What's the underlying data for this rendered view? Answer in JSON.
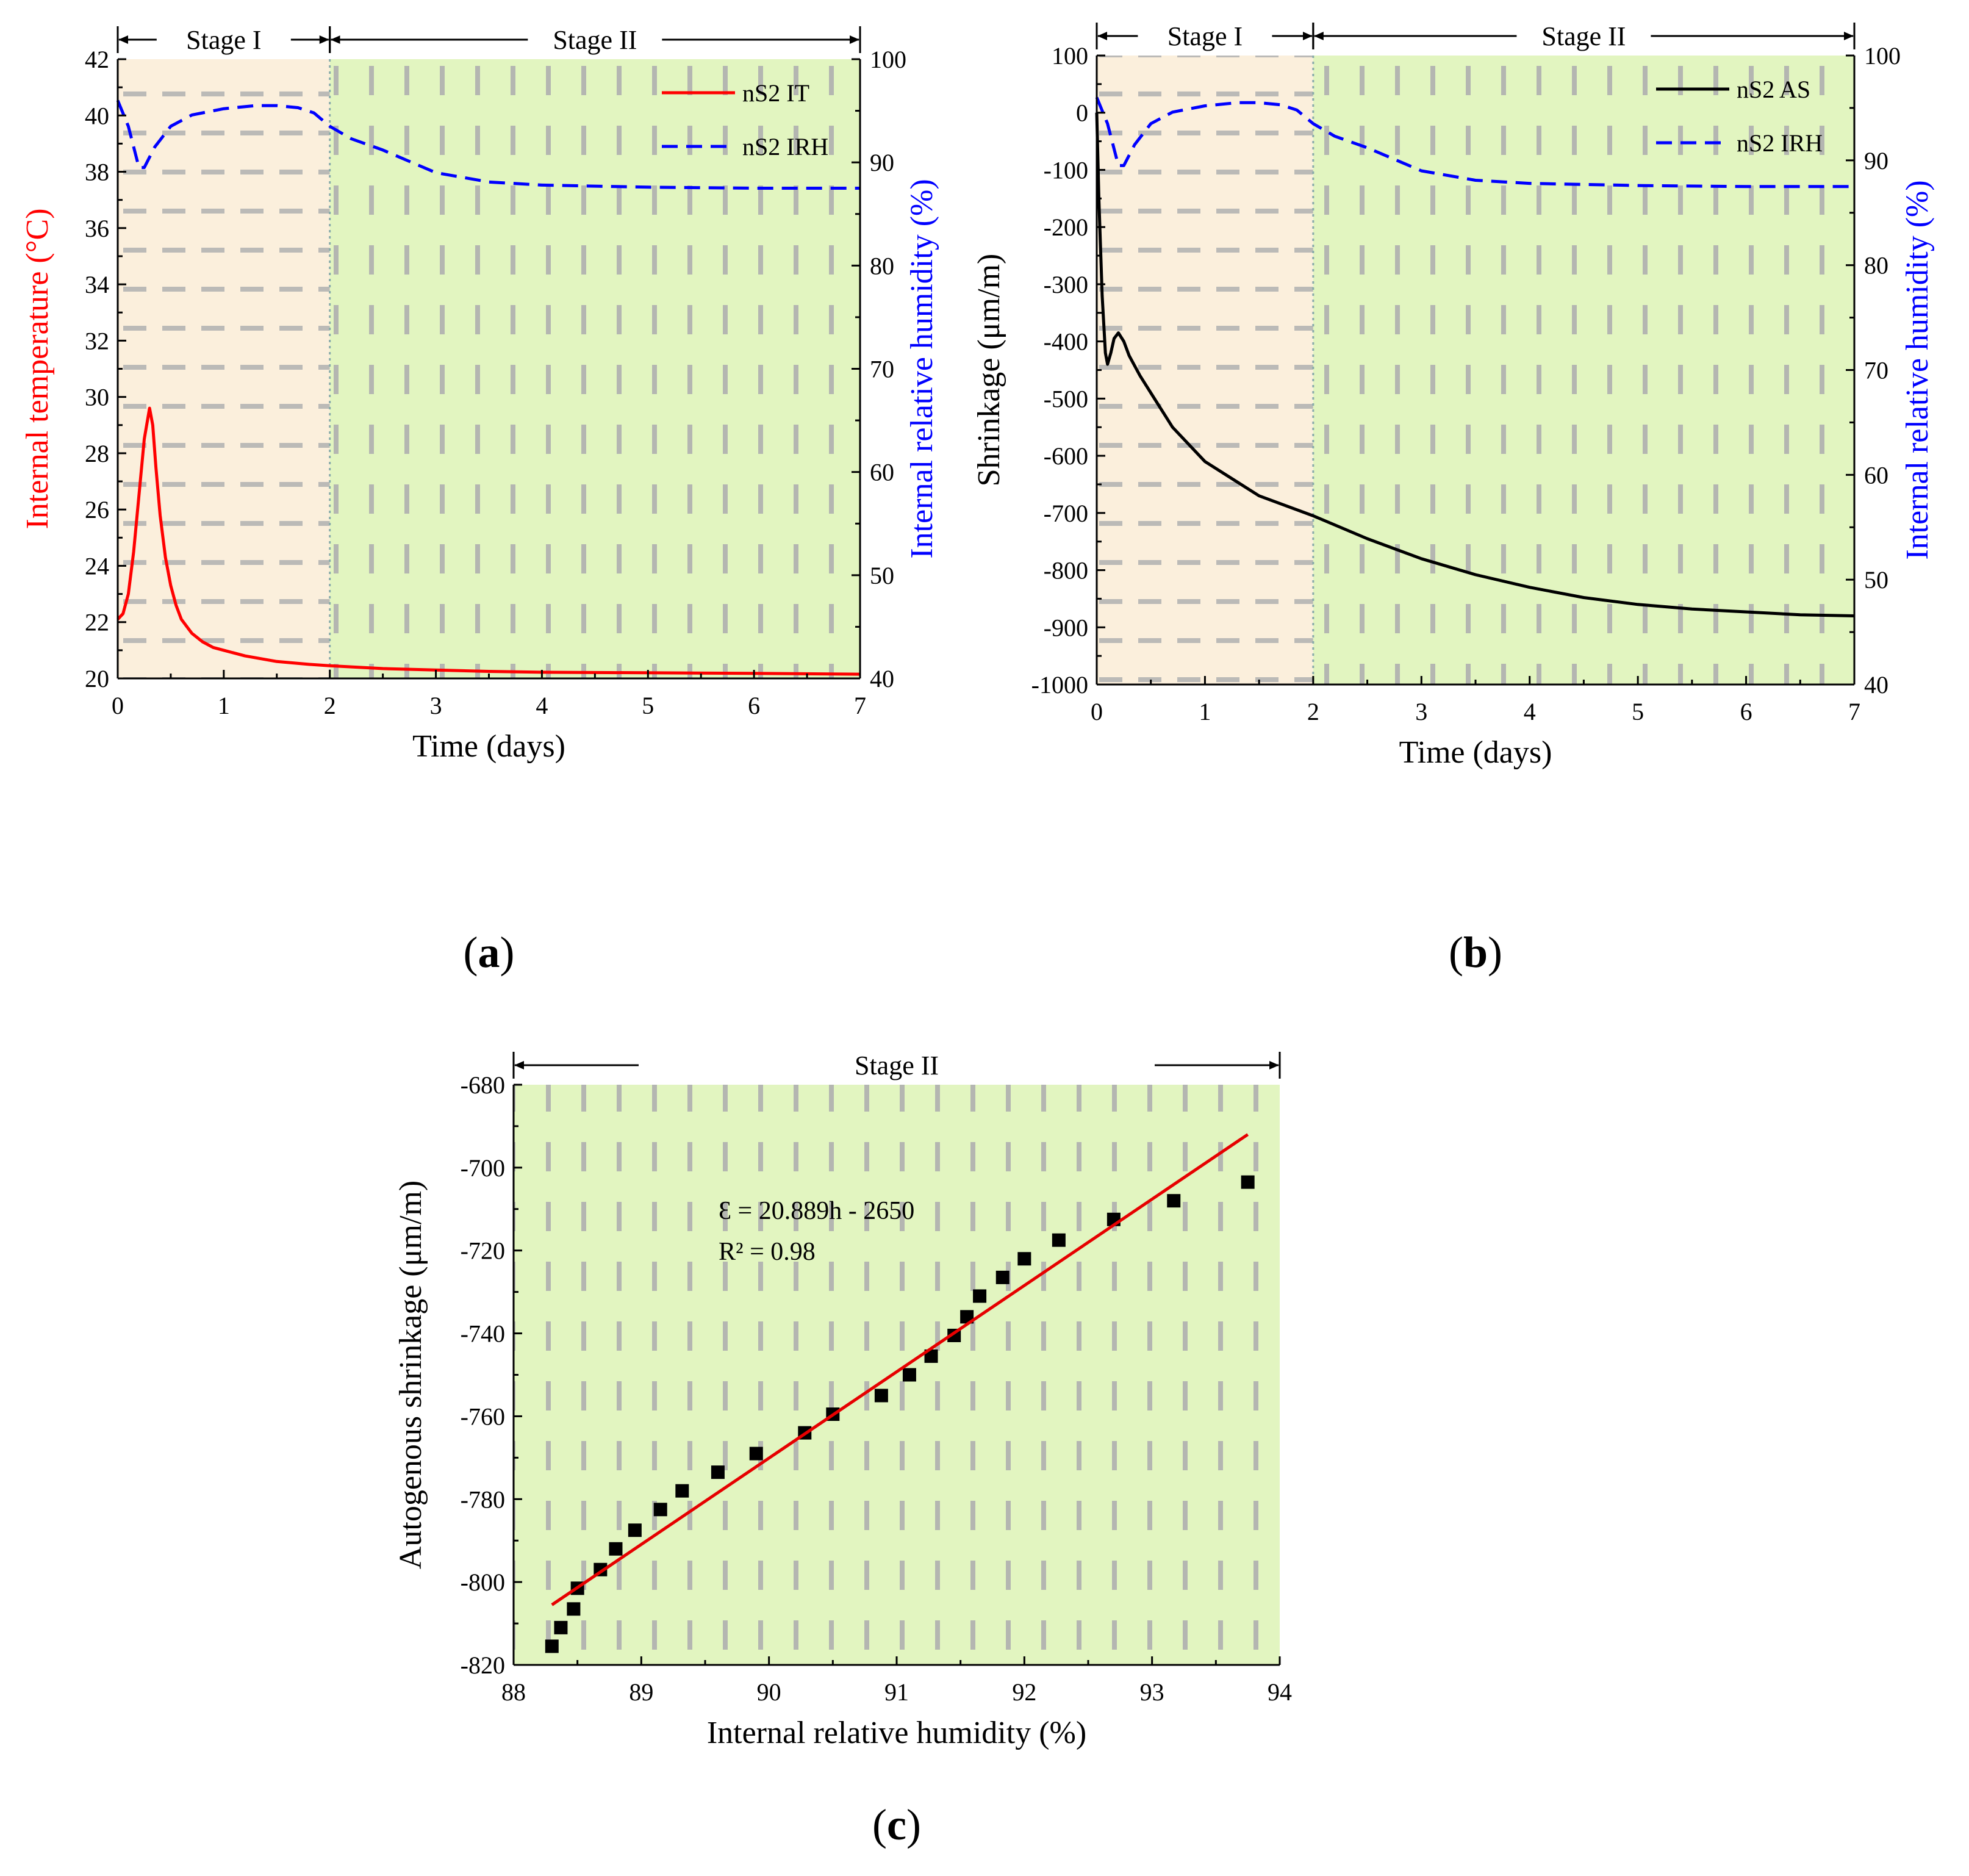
{
  "colors": {
    "stage1_bg": "#fbefdc",
    "stage2_bg": "#e2f5c0",
    "hatch": "#b0b0b0",
    "red": "#ff0000",
    "blue": "#0000ff",
    "black": "#000000",
    "fit_line": "#e60000"
  },
  "chart_data": [
    {
      "id": "a",
      "type": "line",
      "panel_label": {
        "open": "(",
        "letter": "a",
        "close": ")"
      },
      "xlabel": "Time (days)",
      "ylabel_left": "Internal temperature (°C)",
      "ylabel_right": "Internal relative humidity (%)",
      "xlim": [
        0,
        7
      ],
      "xticks": [
        0,
        1,
        2,
        3,
        4,
        5,
        6,
        7
      ],
      "ylim_left": [
        20,
        42
      ],
      "yticks_left": [
        20,
        22,
        24,
        26,
        28,
        30,
        32,
        34,
        36,
        38,
        40,
        42
      ],
      "ylim_right": [
        40,
        100
      ],
      "yticks_right": [
        40,
        50,
        60,
        70,
        80,
        90,
        100
      ],
      "stages": [
        {
          "label": "Stage I",
          "from": 0,
          "to": 2
        },
        {
          "label": "Stage II",
          "from": 2,
          "to": 7
        }
      ],
      "series": [
        {
          "name": "nS2 IT",
          "axis": "left",
          "color": "#ff0000",
          "style": "solid",
          "x": [
            0,
            0.05,
            0.1,
            0.15,
            0.2,
            0.25,
            0.3,
            0.33,
            0.36,
            0.4,
            0.45,
            0.5,
            0.55,
            0.6,
            0.7,
            0.8,
            0.9,
            1.0,
            1.2,
            1.5,
            1.8,
            2.0,
            2.5,
            3.0,
            3.5,
            4.0,
            5.0,
            6.0,
            7.0
          ],
          "y": [
            22.1,
            22.3,
            23.0,
            24.5,
            26.5,
            28.5,
            29.6,
            29.0,
            27.5,
            25.8,
            24.3,
            23.3,
            22.6,
            22.1,
            21.6,
            21.3,
            21.1,
            21.0,
            20.8,
            20.6,
            20.5,
            20.45,
            20.35,
            20.3,
            20.25,
            20.22,
            20.2,
            20.18,
            20.15
          ]
        },
        {
          "name": "nS2 IRH",
          "axis": "right",
          "color": "#0000ff",
          "style": "dashed",
          "x": [
            0,
            0.1,
            0.2,
            0.25,
            0.35,
            0.5,
            0.7,
            1.0,
            1.3,
            1.5,
            1.7,
            1.85,
            2.0,
            2.2,
            2.5,
            3.0,
            3.5,
            4.0,
            5.0,
            6.0,
            7.0
          ],
          "y": [
            96,
            93.5,
            89.5,
            89.5,
            91.5,
            93.5,
            94.6,
            95.2,
            95.5,
            95.5,
            95.3,
            94.8,
            93.5,
            92.3,
            91.2,
            89.0,
            88.1,
            87.8,
            87.6,
            87.5,
            87.5
          ]
        }
      ]
    },
    {
      "id": "b",
      "type": "line",
      "panel_label": {
        "open": "(",
        "letter": "b",
        "close": ")"
      },
      "xlabel": "Time (days)",
      "ylabel_left": "Shrinkage (μm/m)",
      "ylabel_right": "Internal relative humidity (%)",
      "xlim": [
        0,
        7
      ],
      "xticks": [
        0,
        1,
        2,
        3,
        4,
        5,
        6,
        7
      ],
      "ylim_left": [
        -1000,
        100
      ],
      "yticks_left": [
        -1000,
        -900,
        -800,
        -700,
        -600,
        -500,
        -400,
        -300,
        -200,
        -100,
        0,
        100
      ],
      "ylim_right": [
        40,
        100
      ],
      "yticks_right": [
        40,
        50,
        60,
        70,
        80,
        90,
        100
      ],
      "stages": [
        {
          "label": "Stage I",
          "from": 0,
          "to": 2
        },
        {
          "label": "Stage II",
          "from": 2,
          "to": 7
        }
      ],
      "series": [
        {
          "name": "nS2 AS",
          "axis": "left",
          "color": "#000000",
          "style": "solid",
          "x": [
            0,
            0.02,
            0.05,
            0.08,
            0.1,
            0.13,
            0.16,
            0.2,
            0.25,
            0.3,
            0.4,
            0.5,
            0.7,
            1.0,
            1.5,
            2.0,
            2.5,
            3.0,
            3.5,
            4.0,
            4.5,
            5.0,
            5.5,
            6.0,
            6.5,
            7.0
          ],
          "y": [
            0,
            -150,
            -320,
            -420,
            -440,
            -420,
            -395,
            -385,
            -400,
            -425,
            -460,
            -490,
            -550,
            -610,
            -670,
            -705,
            -745,
            -780,
            -808,
            -830,
            -848,
            -860,
            -868,
            -873,
            -878,
            -880
          ]
        },
        {
          "name": "nS2 IRH",
          "axis": "right",
          "color": "#0000ff",
          "style": "dashed",
          "x": [
            0,
            0.1,
            0.2,
            0.25,
            0.35,
            0.5,
            0.7,
            1.0,
            1.3,
            1.5,
            1.7,
            1.85,
            2.0,
            2.2,
            2.5,
            3.0,
            3.5,
            4.0,
            5.0,
            6.0,
            7.0
          ],
          "y": [
            96,
            93.5,
            89.5,
            89.5,
            91.5,
            93.5,
            94.6,
            95.2,
            95.5,
            95.5,
            95.3,
            94.8,
            93.5,
            92.3,
            91.2,
            89.0,
            88.1,
            87.8,
            87.6,
            87.5,
            87.5
          ]
        }
      ]
    },
    {
      "id": "c",
      "type": "scatter",
      "panel_label": {
        "open": "(",
        "letter": "c",
        "close": ")"
      },
      "xlabel": "Internal relative humidity (%)",
      "ylabel_left": "Autogenous shrinkage (μm/m)",
      "xlim": [
        88,
        94
      ],
      "xticks": [
        88,
        89,
        90,
        91,
        92,
        93,
        94
      ],
      "ylim_left": [
        -820,
        -680
      ],
      "yticks_left": [
        -820,
        -800,
        -780,
        -760,
        -740,
        -720,
        -700,
        -680
      ],
      "stages": [
        {
          "label": "Stage II",
          "from": 88,
          "to": 94
        }
      ],
      "points": {
        "x": [
          88.3,
          88.37,
          88.47,
          88.5,
          88.68,
          88.8,
          88.95,
          89.15,
          89.32,
          89.6,
          89.9,
          90.28,
          90.5,
          90.88,
          91.1,
          91.27,
          91.45,
          91.55,
          91.65,
          91.83,
          92.0,
          92.27,
          92.7,
          93.17,
          93.75
        ],
        "y": [
          -815.5,
          -811,
          -806.5,
          -801.5,
          -797,
          -792,
          -787.5,
          -782.5,
          -778,
          -773.5,
          -769,
          -764,
          -759.5,
          -755,
          -750,
          -745.5,
          -740.5,
          -736,
          -731,
          -726.5,
          -722,
          -717.5,
          -712.5,
          -708,
          -703.5
        ]
      },
      "fit": {
        "x": [
          88.3,
          93.75
        ],
        "y": [
          -805.5,
          -692
        ],
        "equation": "Ɛ = 20.889h - 2650",
        "r2": "R² = 0.98"
      }
    }
  ]
}
